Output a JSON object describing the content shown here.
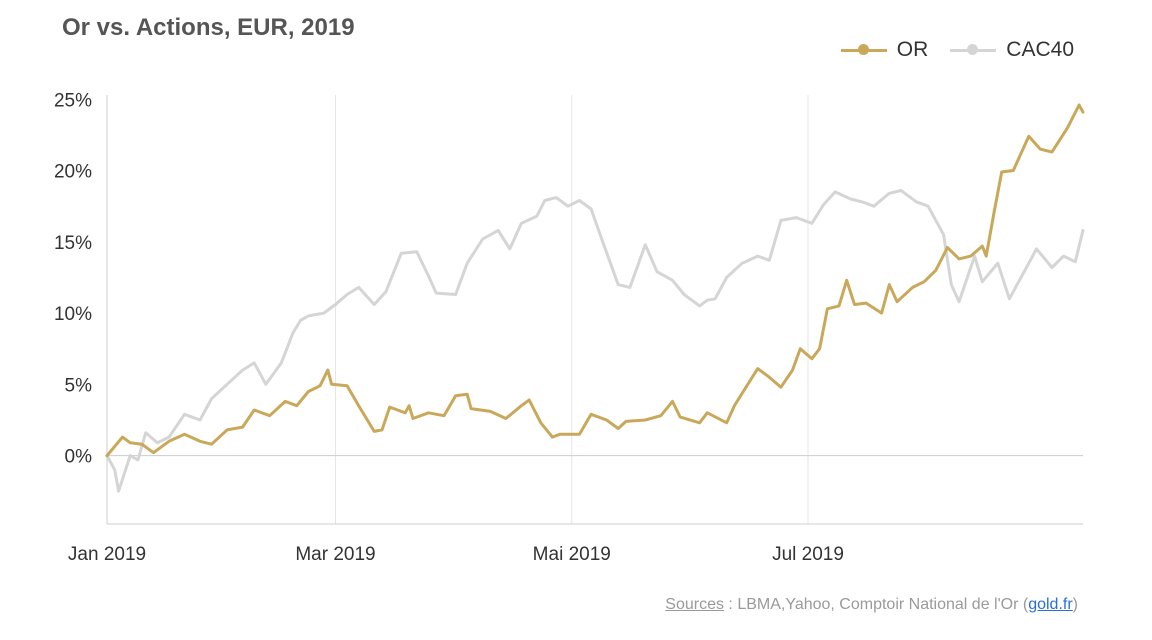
{
  "chart_data": {
    "type": "line",
    "title": "Or vs. Actions, EUR, 2019",
    "xlabel": "",
    "ylabel": "",
    "x_ticks": [
      "Jan 2019",
      "Mar 2019",
      "Mai 2019",
      "Jul 2019"
    ],
    "x_tick_dates": [
      "2019-01-01",
      "2019-03-01",
      "2019-05-01",
      "2019-07-01"
    ],
    "y_ticks": [
      "0%",
      "5%",
      "10%",
      "15%",
      "20%",
      "25%"
    ],
    "y_tick_values": [
      0,
      5,
      10,
      15,
      20,
      25
    ],
    "ylim": [
      -5,
      25
    ],
    "xlim": [
      "2019-01-01",
      "2019-08-31"
    ],
    "grid": "vertical gridlines at x ticks; horizontal line at 0%",
    "legend_position": "top-right",
    "series": [
      {
        "name": "OR",
        "color": "#c9a85a",
        "points": [
          [
            "2019-01-01",
            0.0
          ],
          [
            "2019-01-05",
            1.3
          ],
          [
            "2019-01-07",
            0.9
          ],
          [
            "2019-01-10",
            0.8
          ],
          [
            "2019-01-13",
            0.2
          ],
          [
            "2019-01-17",
            1.0
          ],
          [
            "2019-01-21",
            1.5
          ],
          [
            "2019-01-25",
            1.0
          ],
          [
            "2019-01-28",
            0.8
          ],
          [
            "2019-02-01",
            1.8
          ],
          [
            "2019-02-05",
            2.0
          ],
          [
            "2019-02-08",
            3.2
          ],
          [
            "2019-02-12",
            2.8
          ],
          [
            "2019-02-16",
            3.8
          ],
          [
            "2019-02-19",
            3.5
          ],
          [
            "2019-02-22",
            4.5
          ],
          [
            "2019-02-25",
            4.9
          ],
          [
            "2019-02-27",
            6.0
          ],
          [
            "2019-02-28",
            5.0
          ],
          [
            "2019-03-04",
            4.9
          ],
          [
            "2019-03-07",
            3.5
          ],
          [
            "2019-03-11",
            1.7
          ],
          [
            "2019-03-13",
            1.8
          ],
          [
            "2019-03-15",
            3.4
          ],
          [
            "2019-03-19",
            3.0
          ],
          [
            "2019-03-20",
            3.5
          ],
          [
            "2019-03-21",
            2.6
          ],
          [
            "2019-03-25",
            3.0
          ],
          [
            "2019-03-29",
            2.8
          ],
          [
            "2019-04-01",
            4.2
          ],
          [
            "2019-04-04",
            4.3
          ],
          [
            "2019-04-05",
            3.3
          ],
          [
            "2019-04-10",
            3.1
          ],
          [
            "2019-04-14",
            2.6
          ],
          [
            "2019-04-18",
            3.5
          ],
          [
            "2019-04-20",
            3.9
          ],
          [
            "2019-04-23",
            2.3
          ],
          [
            "2019-04-26",
            1.3
          ],
          [
            "2019-04-28",
            1.5
          ],
          [
            "2019-05-03",
            1.5
          ],
          [
            "2019-05-06",
            2.9
          ],
          [
            "2019-05-10",
            2.5
          ],
          [
            "2019-05-13",
            1.9
          ],
          [
            "2019-05-15",
            2.4
          ],
          [
            "2019-05-20",
            2.5
          ],
          [
            "2019-05-24",
            2.8
          ],
          [
            "2019-05-27",
            3.8
          ],
          [
            "2019-05-29",
            2.7
          ],
          [
            "2019-06-03",
            2.3
          ],
          [
            "2019-06-05",
            3.0
          ],
          [
            "2019-06-10",
            2.3
          ],
          [
            "2019-06-12",
            3.5
          ],
          [
            "2019-06-15",
            4.8
          ],
          [
            "2019-06-18",
            6.1
          ],
          [
            "2019-06-21",
            5.5
          ],
          [
            "2019-06-24",
            4.8
          ],
          [
            "2019-06-27",
            6.0
          ],
          [
            "2019-06-29",
            7.5
          ],
          [
            "2019-07-02",
            6.8
          ],
          [
            "2019-07-04",
            7.5
          ],
          [
            "2019-07-06",
            10.3
          ],
          [
            "2019-07-09",
            10.5
          ],
          [
            "2019-07-11",
            12.3
          ],
          [
            "2019-07-13",
            10.6
          ],
          [
            "2019-07-16",
            10.7
          ],
          [
            "2019-07-20",
            10.0
          ],
          [
            "2019-07-22",
            12.0
          ],
          [
            "2019-07-24",
            10.8
          ],
          [
            "2019-07-28",
            11.8
          ],
          [
            "2019-07-31",
            12.2
          ],
          [
            "2019-08-03",
            13.0
          ],
          [
            "2019-08-06",
            14.6
          ],
          [
            "2019-08-09",
            13.8
          ],
          [
            "2019-08-12",
            14.0
          ],
          [
            "2019-08-15",
            14.7
          ],
          [
            "2019-08-16",
            14.0
          ],
          [
            "2019-08-18",
            17.0
          ],
          [
            "2019-08-20",
            19.9
          ],
          [
            "2019-08-23",
            20.0
          ],
          [
            "2019-08-26",
            21.8
          ],
          [
            "2019-08-27",
            22.4
          ],
          [
            "2019-08-30",
            21.5
          ],
          [
            "2019-09-02",
            21.3
          ],
          [
            "2019-09-06",
            23.0
          ],
          [
            "2019-09-09",
            24.6
          ],
          [
            "2019-09-10",
            24.1
          ]
        ]
      },
      {
        "name": "CAC40",
        "color": "#d5d5d5",
        "points": [
          [
            "2019-01-01",
            0.0
          ],
          [
            "2019-01-03",
            -1.0
          ],
          [
            "2019-01-04",
            -2.5
          ],
          [
            "2019-01-07",
            0.0
          ],
          [
            "2019-01-09",
            -0.3
          ],
          [
            "2019-01-11",
            1.6
          ],
          [
            "2019-01-14",
            0.9
          ],
          [
            "2019-01-17",
            1.3
          ],
          [
            "2019-01-21",
            2.9
          ],
          [
            "2019-01-25",
            2.5
          ],
          [
            "2019-01-28",
            4.0
          ],
          [
            "2019-02-01",
            5.0
          ],
          [
            "2019-02-05",
            6.0
          ],
          [
            "2019-02-08",
            6.5
          ],
          [
            "2019-02-11",
            5.0
          ],
          [
            "2019-02-15",
            6.5
          ],
          [
            "2019-02-18",
            8.6
          ],
          [
            "2019-02-20",
            9.5
          ],
          [
            "2019-02-22",
            9.8
          ],
          [
            "2019-02-26",
            10.0
          ],
          [
            "2019-03-01",
            10.6
          ],
          [
            "2019-03-04",
            11.3
          ],
          [
            "2019-03-07",
            11.8
          ],
          [
            "2019-03-11",
            10.6
          ],
          [
            "2019-03-14",
            11.5
          ],
          [
            "2019-03-18",
            14.2
          ],
          [
            "2019-03-22",
            14.3
          ],
          [
            "2019-03-25",
            12.6
          ],
          [
            "2019-03-27",
            11.4
          ],
          [
            "2019-04-01",
            11.3
          ],
          [
            "2019-04-04",
            13.5
          ],
          [
            "2019-04-08",
            15.2
          ],
          [
            "2019-04-12",
            15.8
          ],
          [
            "2019-04-15",
            14.5
          ],
          [
            "2019-04-18",
            16.3
          ],
          [
            "2019-04-22",
            16.8
          ],
          [
            "2019-04-24",
            17.9
          ],
          [
            "2019-04-27",
            18.1
          ],
          [
            "2019-04-30",
            17.5
          ],
          [
            "2019-05-03",
            17.9
          ],
          [
            "2019-05-06",
            17.3
          ],
          [
            "2019-05-09",
            15.0
          ],
          [
            "2019-05-13",
            12.0
          ],
          [
            "2019-05-16",
            11.8
          ],
          [
            "2019-05-20",
            14.8
          ],
          [
            "2019-05-23",
            12.9
          ],
          [
            "2019-05-27",
            12.3
          ],
          [
            "2019-05-30",
            11.3
          ],
          [
            "2019-06-03",
            10.5
          ],
          [
            "2019-06-05",
            10.9
          ],
          [
            "2019-06-07",
            11.0
          ],
          [
            "2019-06-10",
            12.5
          ],
          [
            "2019-06-14",
            13.5
          ],
          [
            "2019-06-18",
            14.0
          ],
          [
            "2019-06-21",
            13.7
          ],
          [
            "2019-06-24",
            16.5
          ],
          [
            "2019-06-28",
            16.7
          ],
          [
            "2019-07-02",
            16.3
          ],
          [
            "2019-07-05",
            17.6
          ],
          [
            "2019-07-08",
            18.5
          ],
          [
            "2019-07-12",
            18.0
          ],
          [
            "2019-07-15",
            17.8
          ],
          [
            "2019-07-18",
            17.5
          ],
          [
            "2019-07-22",
            18.4
          ],
          [
            "2019-07-25",
            18.6
          ],
          [
            "2019-07-29",
            17.8
          ],
          [
            "2019-08-01",
            17.5
          ],
          [
            "2019-08-05",
            15.5
          ],
          [
            "2019-08-07",
            12.0
          ],
          [
            "2019-08-09",
            10.8
          ],
          [
            "2019-08-13",
            14.0
          ],
          [
            "2019-08-15",
            12.2
          ],
          [
            "2019-08-19",
            13.5
          ],
          [
            "2019-08-22",
            11.0
          ],
          [
            "2019-08-26",
            13.0
          ],
          [
            "2019-08-29",
            14.5
          ],
          [
            "2019-09-02",
            13.2
          ],
          [
            "2019-09-05",
            14.0
          ],
          [
            "2019-09-08",
            13.6
          ],
          [
            "2019-09-10",
            15.8
          ]
        ]
      }
    ]
  },
  "legend": {
    "items": [
      {
        "label": "OR",
        "color": "#c9a85a"
      },
      {
        "label": "CAC40",
        "color": "#d5d5d5"
      }
    ]
  },
  "source": {
    "label": "Sources",
    "text": " : LBMA,Yahoo, Comptoir National de l'Or (",
    "link_text": "gold.fr",
    "close": ")"
  }
}
